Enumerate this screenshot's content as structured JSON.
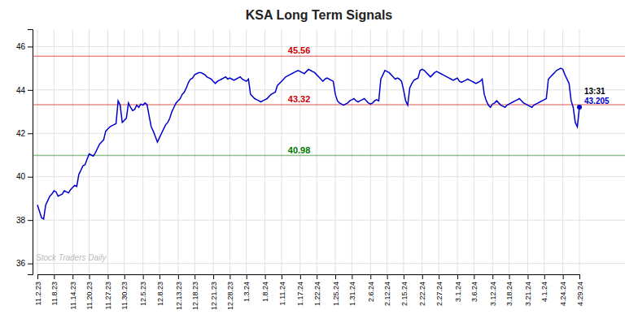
{
  "chart_data": {
    "type": "line",
    "title": "KSA Long Term Signals",
    "categories": [
      "11.2.23",
      null,
      null,
      null,
      null,
      null,
      null,
      null,
      "11.8.23",
      null,
      null,
      null,
      null,
      null,
      null,
      null,
      null,
      "11.14.23",
      null,
      null,
      null,
      null,
      null,
      null,
      null,
      "11.20.23",
      null,
      null,
      null,
      null,
      null,
      null,
      null,
      null,
      "11.27.23",
      null,
      null,
      null,
      null,
      null,
      null,
      null,
      "11.30.23",
      null,
      null,
      null,
      null,
      null,
      null,
      null,
      null,
      "12.5.23",
      null,
      null,
      null,
      null,
      null,
      null,
      null,
      "12.8.23",
      null,
      null,
      null,
      null,
      null,
      null,
      null,
      null,
      "12.13.23",
      null,
      null,
      null,
      null,
      null,
      null,
      null,
      "12.18.23",
      null,
      null,
      null,
      null,
      null,
      null,
      null,
      null,
      "12.21.23",
      null,
      null,
      null,
      null,
      null,
      null,
      null,
      "12.28.23",
      null,
      null,
      null,
      null,
      null,
      null,
      null,
      "1.3.24",
      null,
      null,
      null,
      null,
      null,
      null,
      null,
      null,
      "1.8.24",
      null,
      null,
      null,
      null,
      null,
      null,
      null,
      "1.11.24",
      null,
      null,
      null,
      null,
      null,
      null,
      null,
      null,
      "1.17.24",
      null,
      null,
      null,
      null,
      null,
      null,
      null,
      "1.22.24",
      null,
      null,
      null,
      null,
      null,
      null,
      null,
      null,
      "1.25.24",
      null,
      null,
      null,
      null,
      null,
      null,
      null,
      "1.31.24",
      null,
      null,
      null,
      null,
      null,
      null,
      null,
      null,
      "2.6.24",
      null,
      null,
      null,
      null,
      null,
      null,
      null,
      "2.12.24",
      null,
      null,
      null,
      null,
      null,
      null,
      null,
      "2.15.24",
      null,
      null,
      null,
      null,
      null,
      null,
      null,
      null,
      "2.22.24",
      null,
      null,
      null,
      null,
      null,
      null,
      null,
      "2.27.24",
      null,
      null,
      null,
      null,
      null,
      null,
      null,
      null,
      "3.1.24",
      null,
      null,
      null,
      null,
      null,
      null,
      null,
      "3.6.24",
      null,
      null,
      null,
      null,
      null,
      null,
      null,
      null,
      "3.12.24",
      null,
      null,
      null,
      null,
      null,
      null,
      null,
      "3.18.24",
      null,
      null,
      null,
      null,
      null,
      null,
      null,
      null,
      "3.21.24",
      null,
      null,
      null,
      null,
      null,
      null,
      null,
      "4.1.24",
      null,
      null,
      null,
      null,
      null,
      null,
      null,
      null,
      "4.24.24",
      null,
      null,
      null,
      null,
      null,
      null,
      null,
      "4.29.24"
    ],
    "values": [
      38.7,
      38.4,
      38.1,
      38.05,
      38.7,
      38.9,
      39.1,
      39.2,
      39.35,
      39.3,
      39.1,
      39.15,
      39.2,
      39.35,
      39.3,
      39.25,
      39.4,
      39.5,
      39.6,
      39.55,
      40.1,
      40.3,
      40.5,
      40.55,
      40.8,
      41.05,
      41.0,
      40.95,
      41.1,
      41.3,
      41.5,
      41.6,
      41.7,
      42.1,
      42.2,
      42.3,
      42.35,
      42.4,
      42.45,
      43.5,
      43.3,
      42.5,
      42.6,
      42.7,
      43.4,
      43.2,
      43.05,
      43.1,
      43.3,
      43.2,
      43.35,
      43.3,
      43.4,
      43.32,
      42.8,
      42.3,
      42.1,
      41.85,
      41.6,
      41.8,
      42.0,
      42.2,
      42.4,
      42.5,
      42.7,
      43.0,
      43.2,
      43.4,
      43.5,
      43.6,
      43.8,
      43.9,
      44.1,
      44.35,
      44.5,
      44.55,
      44.7,
      44.75,
      44.8,
      44.8,
      44.75,
      44.7,
      44.6,
      44.55,
      44.5,
      44.4,
      44.3,
      44.4,
      44.45,
      44.5,
      44.55,
      44.6,
      44.5,
      44.55,
      44.5,
      44.45,
      44.5,
      44.55,
      44.6,
      44.5,
      44.45,
      44.4,
      44.5,
      43.8,
      43.7,
      43.6,
      43.55,
      43.5,
      43.45,
      43.5,
      43.55,
      43.6,
      43.7,
      43.8,
      43.85,
      43.9,
      44.2,
      44.3,
      44.4,
      44.5,
      44.6,
      44.65,
      44.7,
      44.75,
      44.8,
      44.85,
      44.9,
      44.85,
      44.8,
      44.75,
      44.85,
      44.95,
      44.9,
      44.85,
      44.8,
      44.7,
      44.6,
      44.5,
      44.4,
      44.5,
      44.55,
      44.5,
      44.45,
      44.4,
      43.8,
      43.5,
      43.4,
      43.35,
      43.3,
      43.35,
      43.4,
      43.5,
      43.55,
      43.6,
      43.5,
      43.45,
      43.5,
      43.55,
      43.6,
      43.5,
      43.4,
      43.35,
      43.4,
      43.5,
      43.55,
      43.5,
      44.5,
      44.7,
      44.9,
      44.85,
      44.8,
      44.7,
      44.6,
      44.5,
      44.55,
      44.5,
      44.4,
      44.0,
      43.5,
      43.3,
      44.1,
      44.3,
      44.45,
      44.5,
      44.55,
      44.9,
      44.95,
      44.9,
      44.8,
      44.7,
      44.6,
      44.7,
      44.8,
      44.85,
      44.8,
      44.75,
      44.7,
      44.65,
      44.6,
      44.55,
      44.5,
      44.45,
      44.5,
      44.55,
      44.4,
      44.35,
      44.4,
      44.45,
      44.5,
      44.45,
      44.4,
      44.35,
      44.3,
      44.35,
      44.4,
      44.5,
      43.8,
      43.5,
      43.3,
      43.2,
      43.35,
      43.4,
      43.5,
      43.4,
      43.3,
      43.25,
      43.2,
      43.3,
      43.35,
      43.4,
      43.45,
      43.5,
      43.55,
      43.6,
      43.5,
      43.4,
      43.35,
      43.3,
      43.25,
      43.2,
      43.3,
      43.35,
      43.4,
      43.45,
      43.5,
      43.55,
      43.6,
      44.5,
      44.6,
      44.7,
      44.8,
      44.9,
      44.95,
      45.0,
      44.95,
      44.7,
      44.5,
      44.3,
      43.5,
      43.2,
      42.5,
      42.3,
      43.205
    ],
    "color": "#0000cc",
    "ylim": [
      35.5,
      46.8
    ],
    "yticks": [
      36,
      38,
      40,
      42,
      44,
      46
    ],
    "grid": true,
    "hlines": [
      {
        "value": 45.56,
        "color": "#cc0000"
      },
      {
        "value": 43.32,
        "color": "#cc0000"
      },
      {
        "value": 40.98,
        "color": "#007700"
      }
    ],
    "annotation": "13:31",
    "watermark": "Stock Traders Daily"
  }
}
